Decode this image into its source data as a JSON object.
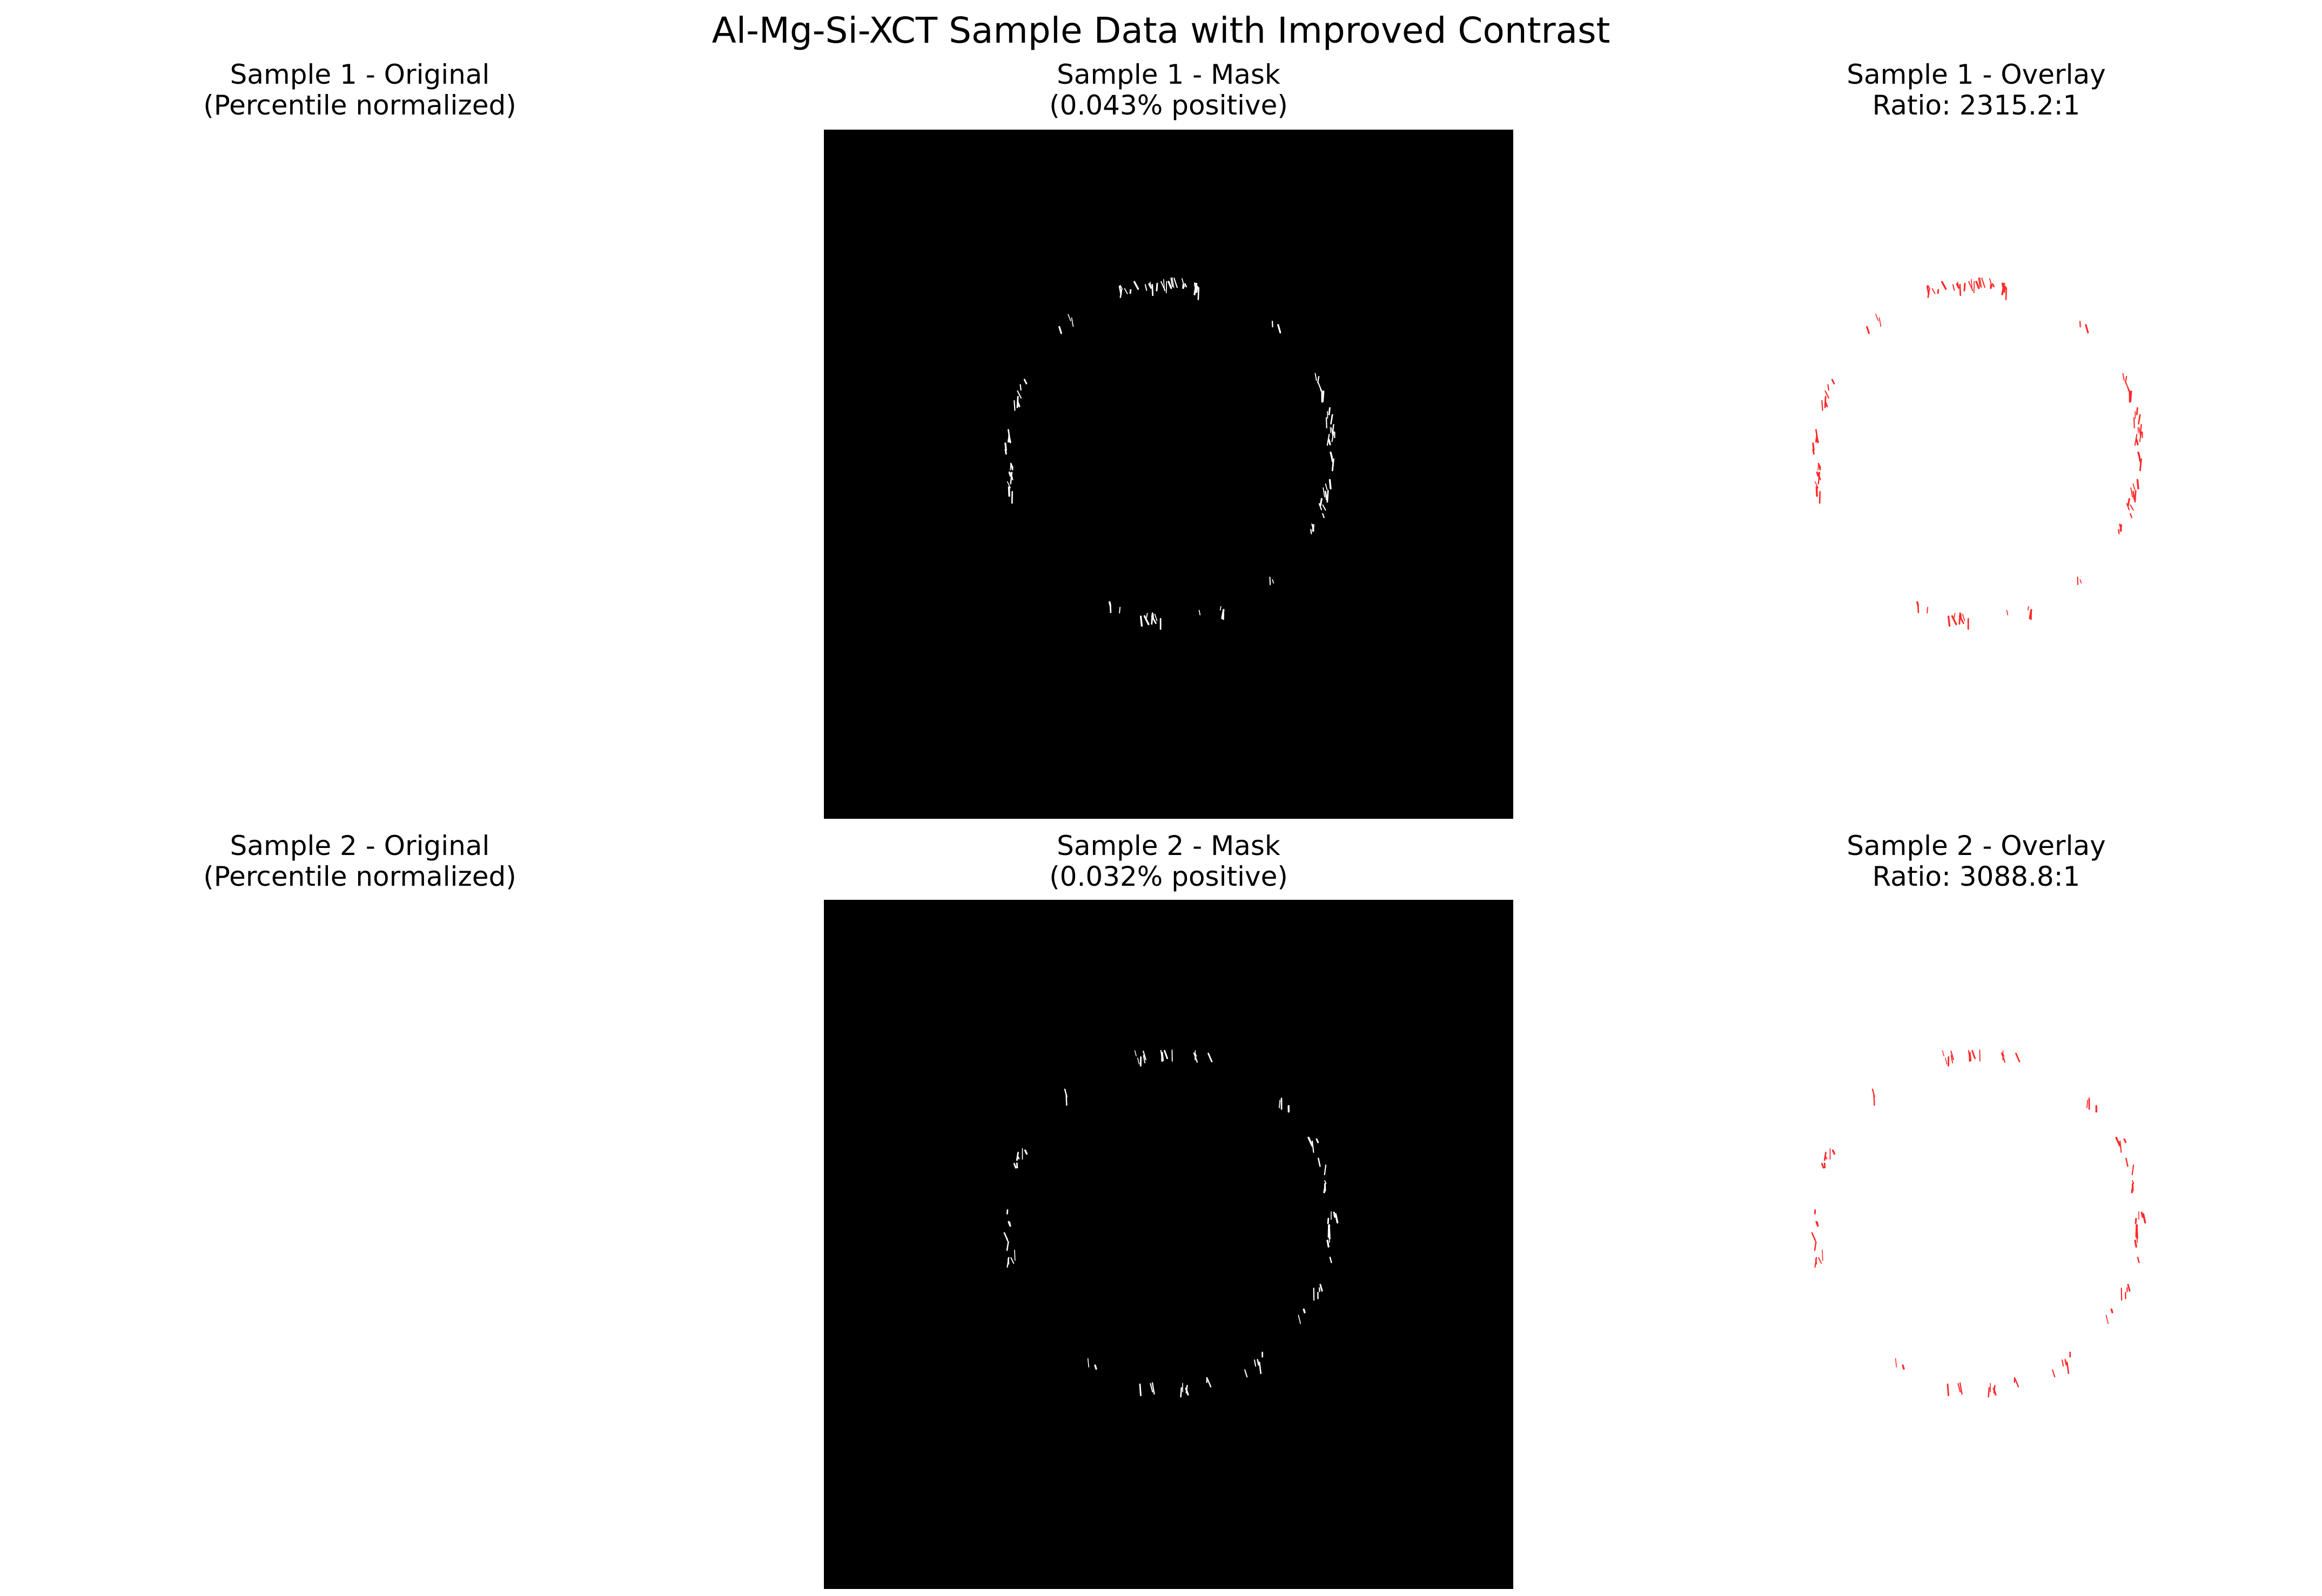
{
  "figure": {
    "title": "Al-Mg-Si-XCT Sample Data with Improved Contrast"
  },
  "rows": [
    {
      "original": {
        "title": "Sample 1 - Original\n(Percentile normalized)"
      },
      "mask": {
        "title": "Sample 1 - Mask\n(0.043% positive)"
      },
      "overlay": {
        "title": "Sample 1 - Overlay\nRatio: 2315.2:1"
      }
    },
    {
      "original": {
        "title": "Sample 2 - Original\n(Percentile normalized)"
      },
      "mask": {
        "title": "Sample 2 - Mask\n(0.032% positive)"
      },
      "overlay": {
        "title": "Sample 2 - Overlay\nRatio: 3088.8:1"
      }
    }
  ],
  "colors": {
    "mask_background": "#000000",
    "mask_foreground": "#ffffff",
    "overlay_background": "#ffffff",
    "overlay_foreground": "#ff2a2a"
  }
}
